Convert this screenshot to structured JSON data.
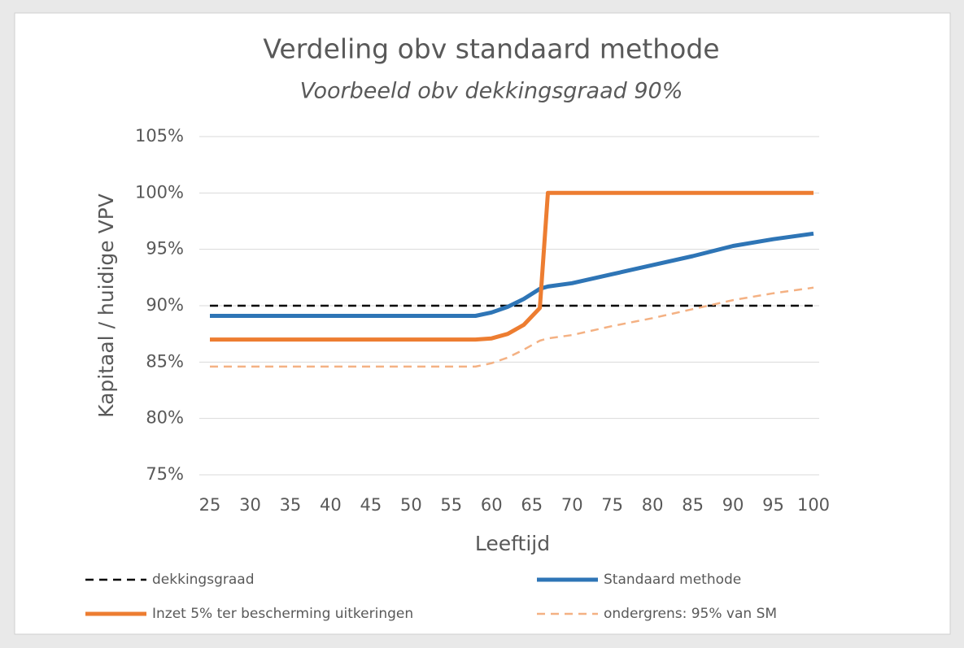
{
  "chart_data": {
    "type": "line",
    "title": "Verdeling obv standaard methode",
    "subtitle": "Voorbeeld obv dekkingsgraad 90%",
    "x_label": "Leeftijd",
    "y_label": "Kapitaal / huidige VPV",
    "x": [
      25,
      58,
      60,
      62,
      64,
      66,
      67,
      70,
      75,
      80,
      85,
      90,
      95,
      100
    ],
    "series": [
      {
        "name": "dekkingsgraad",
        "color": "#000000",
        "dash": true,
        "values": [
          90,
          90,
          90,
          90,
          90,
          90,
          90,
          90,
          90,
          90,
          90,
          90,
          90,
          90
        ]
      },
      {
        "name": "Standaard methode",
        "color": "#2e75b6",
        "dash": false,
        "values": [
          89.1,
          89.1,
          89.4,
          89.9,
          90.6,
          91.5,
          91.7,
          92.0,
          92.8,
          93.6,
          94.4,
          95.3,
          95.9,
          96.4
        ]
      },
      {
        "name": "Inzet 5% ter bescherming uitkeringen",
        "color": "#ed7d31",
        "dash": false,
        "values": [
          87,
          87,
          87.1,
          87.5,
          88.3,
          89.8,
          100,
          100,
          100,
          100,
          100,
          100,
          100,
          100
        ]
      },
      {
        "name": "ondergrens: 95% van SM",
        "color": "#f4b183",
        "dash": true,
        "values": [
          84.6,
          84.6,
          84.9,
          85.4,
          86.1,
          86.9,
          87.1,
          87.4,
          88.2,
          88.9,
          89.7,
          90.5,
          91.1,
          91.6
        ]
      }
    ],
    "xlim": [
      25,
      100
    ],
    "xticks": [
      25,
      30,
      35,
      40,
      45,
      50,
      55,
      60,
      65,
      70,
      75,
      80,
      85,
      90,
      95,
      100
    ],
    "ylim": [
      75,
      105
    ],
    "yticks": [
      {
        "value": 75,
        "label": "75%"
      },
      {
        "value": 80,
        "label": "80%"
      },
      {
        "value": 85,
        "label": "85%"
      },
      {
        "value": 90,
        "label": "90%"
      },
      {
        "value": 95,
        "label": "95%"
      },
      {
        "value": 100,
        "label": "100%"
      },
      {
        "value": 105,
        "label": "105%"
      }
    ],
    "grid": true
  }
}
